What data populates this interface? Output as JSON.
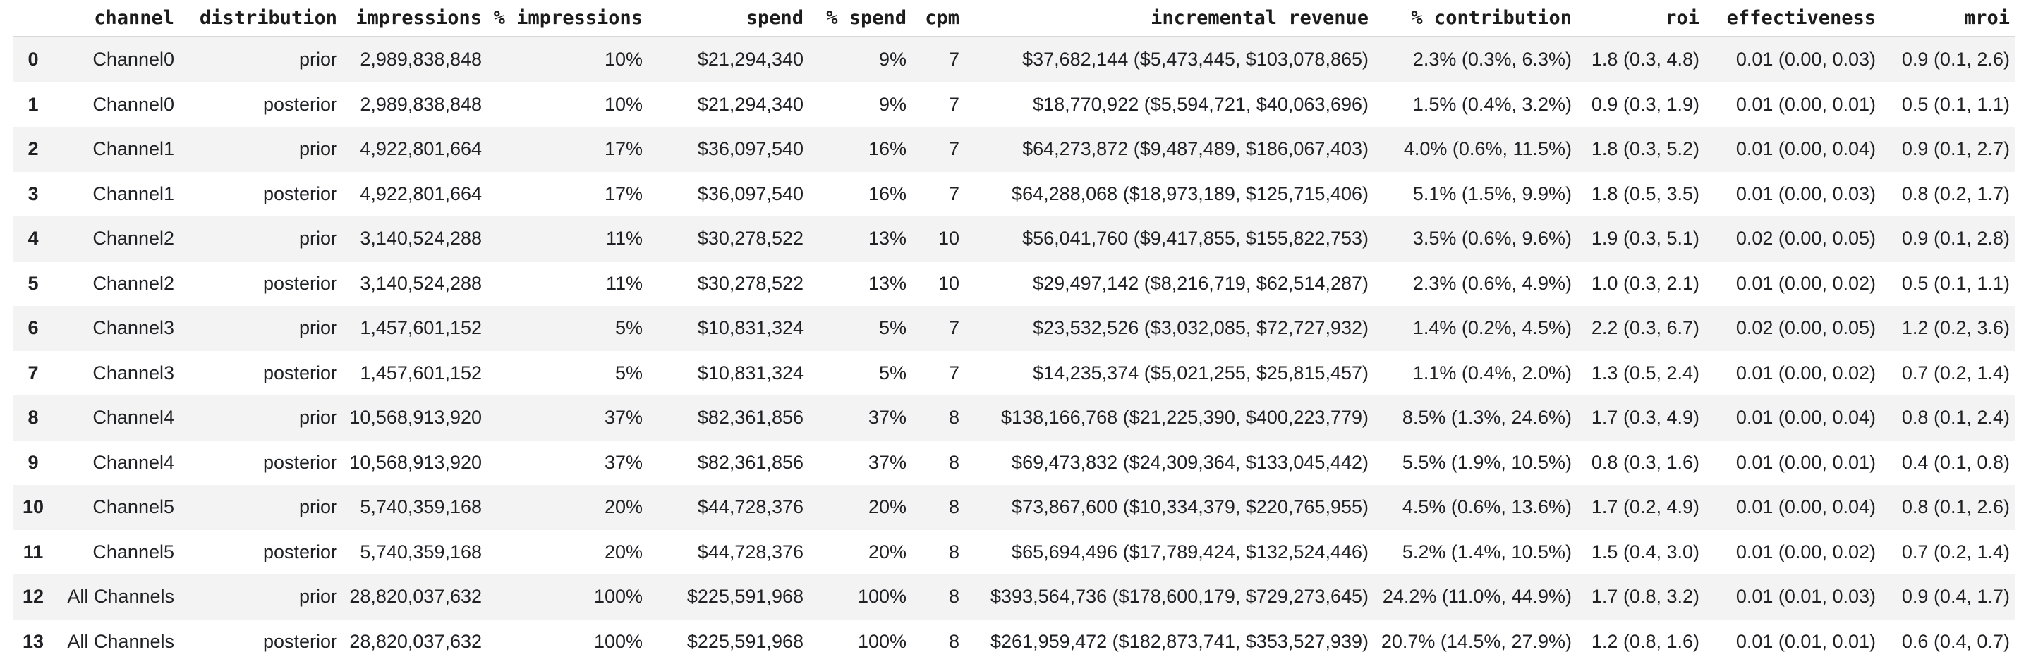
{
  "colors": {
    "page_background": "#ffffff",
    "stripe_row_background": "#f3f3f3",
    "header_border": "#d9d9d9",
    "body_text": "#202124",
    "header_text": "#1c1c1c"
  },
  "table": {
    "index_header": "",
    "columns": [
      "channel",
      "distribution",
      "impressions",
      "% impressions",
      "spend",
      "% spend",
      "cpm",
      "incremental revenue",
      "% contribution",
      "roi",
      "effectiveness",
      "mroi"
    ],
    "column_slugs": [
      "channel",
      "distribution",
      "impressions",
      "pct-impressions",
      "spend",
      "pct-spend",
      "cpm",
      "incremental-revenue",
      "pct-contribution",
      "roi",
      "effectiveness",
      "mroi"
    ],
    "rows": [
      {
        "index": "0",
        "cells": [
          "Channel0",
          "prior",
          "2,989,838,848",
          "10%",
          "$21,294,340",
          "9%",
          "7",
          "$37,682,144 ($5,473,445, $103,078,865)",
          "2.3% (0.3%, 6.3%)",
          "1.8 (0.3, 4.8)",
          "0.01 (0.00, 0.03)",
          "0.9 (0.1, 2.6)"
        ]
      },
      {
        "index": "1",
        "cells": [
          "Channel0",
          "posterior",
          "2,989,838,848",
          "10%",
          "$21,294,340",
          "9%",
          "7",
          "$18,770,922 ($5,594,721, $40,063,696)",
          "1.5% (0.4%, 3.2%)",
          "0.9 (0.3, 1.9)",
          "0.01 (0.00, 0.01)",
          "0.5 (0.1, 1.1)"
        ]
      },
      {
        "index": "2",
        "cells": [
          "Channel1",
          "prior",
          "4,922,801,664",
          "17%",
          "$36,097,540",
          "16%",
          "7",
          "$64,273,872 ($9,487,489, $186,067,403)",
          "4.0% (0.6%, 11.5%)",
          "1.8 (0.3, 5.2)",
          "0.01 (0.00, 0.04)",
          "0.9 (0.1, 2.7)"
        ]
      },
      {
        "index": "3",
        "cells": [
          "Channel1",
          "posterior",
          "4,922,801,664",
          "17%",
          "$36,097,540",
          "16%",
          "7",
          "$64,288,068 ($18,973,189, $125,715,406)",
          "5.1% (1.5%, 9.9%)",
          "1.8 (0.5, 3.5)",
          "0.01 (0.00, 0.03)",
          "0.8 (0.2, 1.7)"
        ]
      },
      {
        "index": "4",
        "cells": [
          "Channel2",
          "prior",
          "3,140,524,288",
          "11%",
          "$30,278,522",
          "13%",
          "10",
          "$56,041,760 ($9,417,855, $155,822,753)",
          "3.5% (0.6%, 9.6%)",
          "1.9 (0.3, 5.1)",
          "0.02 (0.00, 0.05)",
          "0.9 (0.1, 2.8)"
        ]
      },
      {
        "index": "5",
        "cells": [
          "Channel2",
          "posterior",
          "3,140,524,288",
          "11%",
          "$30,278,522",
          "13%",
          "10",
          "$29,497,142 ($8,216,719, $62,514,287)",
          "2.3% (0.6%, 4.9%)",
          "1.0 (0.3, 2.1)",
          "0.01 (0.00, 0.02)",
          "0.5 (0.1, 1.1)"
        ]
      },
      {
        "index": "6",
        "cells": [
          "Channel3",
          "prior",
          "1,457,601,152",
          "5%",
          "$10,831,324",
          "5%",
          "7",
          "$23,532,526 ($3,032,085, $72,727,932)",
          "1.4% (0.2%, 4.5%)",
          "2.2 (0.3, 6.7)",
          "0.02 (0.00, 0.05)",
          "1.2 (0.2, 3.6)"
        ]
      },
      {
        "index": "7",
        "cells": [
          "Channel3",
          "posterior",
          "1,457,601,152",
          "5%",
          "$10,831,324",
          "5%",
          "7",
          "$14,235,374 ($5,021,255, $25,815,457)",
          "1.1% (0.4%, 2.0%)",
          "1.3 (0.5, 2.4)",
          "0.01 (0.00, 0.02)",
          "0.7 (0.2, 1.4)"
        ]
      },
      {
        "index": "8",
        "cells": [
          "Channel4",
          "prior",
          "10,568,913,920",
          "37%",
          "$82,361,856",
          "37%",
          "8",
          "$138,166,768 ($21,225,390, $400,223,779)",
          "8.5% (1.3%, 24.6%)",
          "1.7 (0.3, 4.9)",
          "0.01 (0.00, 0.04)",
          "0.8 (0.1, 2.4)"
        ]
      },
      {
        "index": "9",
        "cells": [
          "Channel4",
          "posterior",
          "10,568,913,920",
          "37%",
          "$82,361,856",
          "37%",
          "8",
          "$69,473,832 ($24,309,364, $133,045,442)",
          "5.5% (1.9%, 10.5%)",
          "0.8 (0.3, 1.6)",
          "0.01 (0.00, 0.01)",
          "0.4 (0.1, 0.8)"
        ]
      },
      {
        "index": "10",
        "cells": [
          "Channel5",
          "prior",
          "5,740,359,168",
          "20%",
          "$44,728,376",
          "20%",
          "8",
          "$73,867,600 ($10,334,379, $220,765,955)",
          "4.5% (0.6%, 13.6%)",
          "1.7 (0.2, 4.9)",
          "0.01 (0.00, 0.04)",
          "0.8 (0.1, 2.6)"
        ]
      },
      {
        "index": "11",
        "cells": [
          "Channel5",
          "posterior",
          "5,740,359,168",
          "20%",
          "$44,728,376",
          "20%",
          "8",
          "$65,694,496 ($17,789,424, $132,524,446)",
          "5.2% (1.4%, 10.5%)",
          "1.5 (0.4, 3.0)",
          "0.01 (0.00, 0.02)",
          "0.7 (0.2, 1.4)"
        ]
      },
      {
        "index": "12",
        "cells": [
          "All Channels",
          "prior",
          "28,820,037,632",
          "100%",
          "$225,591,968",
          "100%",
          "8",
          "$393,564,736 ($178,600,179, $729,273,645)",
          "24.2% (11.0%, 44.9%)",
          "1.7 (0.8, 3.2)",
          "0.01 (0.01, 0.03)",
          "0.9 (0.4, 1.7)"
        ]
      },
      {
        "index": "13",
        "cells": [
          "All Channels",
          "posterior",
          "28,820,037,632",
          "100%",
          "$225,591,968",
          "100%",
          "8",
          "$261,959,472 ($182,873,741, $353,527,939)",
          "20.7% (14.5%, 27.9%)",
          "1.2 (0.8, 1.6)",
          "0.01 (0.01, 0.01)",
          "0.6 (0.4, 0.7)"
        ]
      }
    ]
  }
}
